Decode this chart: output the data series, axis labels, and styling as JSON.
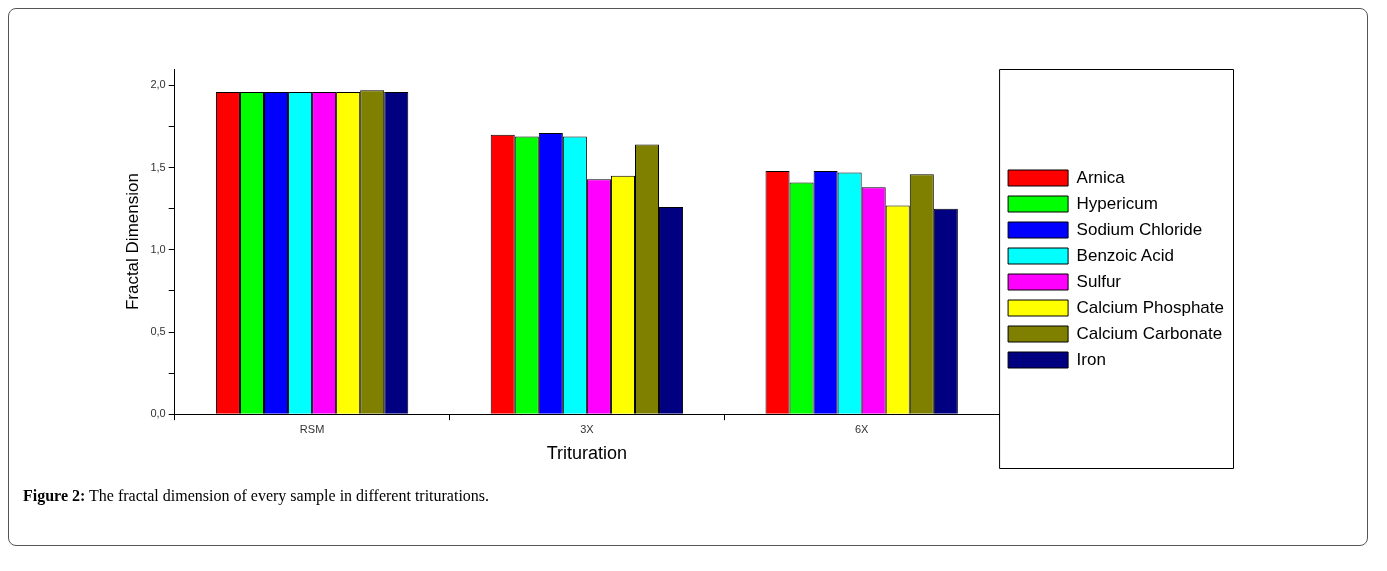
{
  "chart_data": {
    "type": "bar",
    "xlabel": "Trituration",
    "ylabel": "Fractal Dimension",
    "categories": [
      "RSM",
      "3X",
      "6X"
    ],
    "series": [
      {
        "name": "Arnica",
        "color": "#ff0000",
        "values": [
          1.96,
          1.7,
          1.48
        ]
      },
      {
        "name": "Hypericum",
        "color": "#00ff00",
        "values": [
          1.96,
          1.69,
          1.41
        ]
      },
      {
        "name": "Sodium Chloride",
        "color": "#0000ff",
        "values": [
          1.96,
          1.71,
          1.48
        ]
      },
      {
        "name": "Benzoic Acid",
        "color": "#00ffff",
        "values": [
          1.96,
          1.69,
          1.47
        ]
      },
      {
        "name": "Sulfur",
        "color": "#ff00ff",
        "values": [
          1.96,
          1.43,
          1.38
        ]
      },
      {
        "name": "Calcium Phosphate",
        "color": "#ffff00",
        "values": [
          1.96,
          1.45,
          1.27
        ]
      },
      {
        "name": "Calcium Carbonate",
        "color": "#808000",
        "values": [
          1.97,
          1.64,
          1.46
        ]
      },
      {
        "name": "Iron",
        "color": "#000080",
        "values": [
          1.96,
          1.26,
          1.25
        ]
      }
    ],
    "ylim": [
      0,
      2.1
    ],
    "yticks": [
      {
        "value": 0,
        "label": "0,0"
      },
      {
        "value": 0.25,
        "label": null
      },
      {
        "value": 0.5,
        "label": "0,5"
      },
      {
        "value": 0.75,
        "label": null
      },
      {
        "value": 1,
        "label": "1,0"
      },
      {
        "value": 1.25,
        "label": null
      },
      {
        "value": 1.5,
        "label": "1,5"
      },
      {
        "value": 1.75,
        "label": null
      },
      {
        "value": 2,
        "label": "2,0"
      }
    ],
    "grid": false,
    "legend": "right",
    "annotations": [
      "Figure 2: The fractal dimension of every sample in different triturations."
    ]
  }
}
